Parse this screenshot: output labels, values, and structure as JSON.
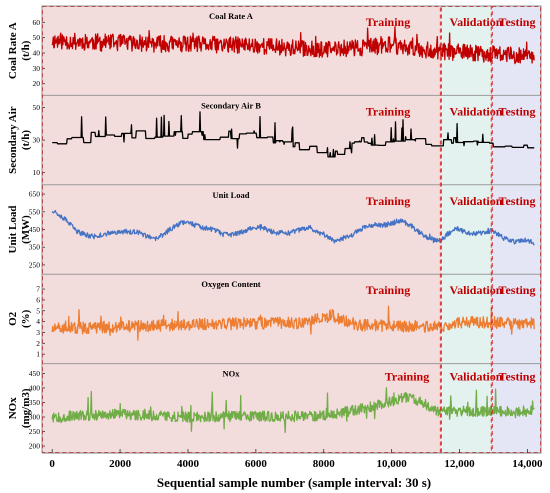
{
  "chart_data": {
    "type": "line",
    "x_axis": {
      "label": "Sequential sample number (sample interval: 30 s)",
      "ticks": [
        0,
        2000,
        4000,
        6000,
        8000,
        10000,
        12000,
        14000
      ],
      "tick_labels": [
        "0",
        "2000",
        "4000",
        "6000",
        "8000",
        "10,000",
        "12,000",
        "14,000"
      ],
      "range": [
        -300,
        14400
      ]
    },
    "regions": [
      {
        "name": "Training",
        "start": -300,
        "end": 11450,
        "color": "#f3dcdc"
      },
      {
        "name": "Validation",
        "start": 11450,
        "end": 12950,
        "color": "#e3f2ee"
      },
      {
        "name": "Testing",
        "start": 12950,
        "end": 14400,
        "color": "#e4e6f6"
      }
    ],
    "panels": [
      {
        "id": "coal",
        "title": "Coal Rate A",
        "ylabel": "Coal Rate A\n(t/h)",
        "color": "#c00000",
        "yrange": [
          15,
          68
        ],
        "yticks": [
          20,
          30,
          40,
          50,
          60
        ],
        "generator": {
          "base": 44,
          "segments": [
            [
              0,
              48
            ],
            [
              3000,
              46
            ],
            [
              6000,
              45
            ],
            [
              8000,
              42
            ],
            [
              10000,
              45
            ],
            [
              11400,
              41
            ],
            [
              14200,
              38
            ]
          ],
          "noise": 5.5,
          "spikes": 0.03,
          "spikeAmp": 10,
          "seed": 11
        },
        "series_name": ""
      },
      {
        "id": "air",
        "title": "Secondary Air B",
        "ylabel": "Secondary Air\n(t/h)",
        "color": "#000000",
        "yrange": [
          5,
          55
        ],
        "yticks": [
          10,
          30,
          50
        ],
        "generator": {
          "mode": "step",
          "base": 30,
          "segments": [
            [
              0,
              30
            ],
            [
              2000,
              33
            ],
            [
              6000,
              33
            ],
            [
              8300,
              20
            ],
            [
              8800,
              30
            ],
            [
              11400,
              29
            ],
            [
              14200,
              28
            ]
          ],
          "noise": 6,
          "spikes": 0.04,
          "spikeAmp": 10,
          "seed": 23
        },
        "series_name": ""
      },
      {
        "id": "load",
        "title": "Unit Load",
        "ylabel": "Unit Load\n(MW)",
        "color": "#4472c4",
        "yrange": [
          220,
          680
        ],
        "yticks": [
          250,
          350,
          450,
          550,
          650
        ],
        "generator": {
          "mode": "wave",
          "base": 450,
          "segments": [
            [
              0,
              560
            ],
            [
              700,
              450
            ],
            [
              1300,
              400
            ],
            [
              2000,
              450
            ],
            [
              3000,
              400
            ],
            [
              4000,
              500
            ],
            [
              5000,
              420
            ],
            [
              6200,
              460
            ],
            [
              7000,
              420
            ],
            [
              7600,
              470
            ],
            [
              8300,
              380
            ],
            [
              9200,
              460
            ],
            [
              10200,
              500
            ],
            [
              11000,
              420
            ],
            [
              11450,
              380
            ],
            [
              11900,
              460
            ],
            [
              12600,
              420
            ],
            [
              13000,
              440
            ],
            [
              13600,
              380
            ],
            [
              14200,
              380
            ]
          ],
          "noise": 14,
          "spikes": 0.01,
          "spikeAmp": 25,
          "seed": 37
        },
        "series_name": ""
      },
      {
        "id": "o2",
        "title": "Oxygen Content",
        "ylabel": "O2\n(%)",
        "color": "#ed7d31",
        "yrange": [
          0.5,
          8
        ],
        "yticks": [
          1,
          2,
          3,
          4,
          5,
          6,
          7
        ],
        "generator": {
          "base": 3.7,
          "segments": [
            [
              0,
              3.3
            ],
            [
              2500,
              3.6
            ],
            [
              5000,
              3.8
            ],
            [
              7500,
              3.9
            ],
            [
              8200,
              4.6
            ],
            [
              9000,
              3.7
            ],
            [
              11400,
              3.5
            ],
            [
              12200,
              4.0
            ],
            [
              14200,
              3.8
            ]
          ],
          "noise": 0.55,
          "spikes": 0.03,
          "spikeAmp": 1.4,
          "seed": 51
        },
        "series_name": ""
      },
      {
        "id": "nox",
        "title": "NOx",
        "ylabel": "NOx\n(mg/m3)",
        "color": "#70ad47",
        "yrange": [
          190,
          470
        ],
        "yticks": [
          200,
          250,
          300,
          350,
          400,
          450
        ],
        "generator": {
          "base": 300,
          "segments": [
            [
              0,
              300
            ],
            [
              2000,
              310
            ],
            [
              4000,
              300
            ],
            [
              8000,
              305
            ],
            [
              9200,
              330
            ],
            [
              10500,
              370
            ],
            [
              11400,
              320
            ],
            [
              14200,
              320
            ]
          ],
          "noise": 18,
          "spikes": 0.04,
          "spikeAmp": 60,
          "seed": 67
        },
        "series_name": ""
      }
    ],
    "region_labels": [
      "Training",
      "Validation",
      "Testing"
    ],
    "grid": false,
    "legend": "none"
  }
}
